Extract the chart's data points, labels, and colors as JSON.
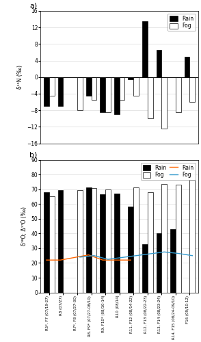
{
  "categories": [
    "R5*, F7 (07/19-27)",
    "R8 (07/27)",
    "R7*, F8 (07/27-30)",
    "R8, F9* (07/27-08/10)",
    "R9, F10* (08/10-14)",
    "R10 (08/14)",
    "R11, F12 (08/14-22)",
    "R12, F13 (08/22-23)",
    "R13, F14 (08/23-24)",
    "R14, F15 (08/24-09/10)",
    "F16 (09/10-12)"
  ],
  "rain_N": [
    -7.0,
    -7.0,
    null,
    -4.5,
    -8.5,
    -9.0,
    -0.5,
    13.5,
    6.5,
    null,
    5.0
  ],
  "fog_N": [
    -4.5,
    null,
    -8.0,
    -5.5,
    -8.5,
    -5.5,
    -4.5,
    -10.0,
    -12.5,
    -8.5,
    -6.0
  ],
  "rain_O": [
    68.0,
    69.5,
    null,
    71.5,
    66.5,
    67.0,
    58.5,
    33.0,
    40.0,
    43.0,
    null
  ],
  "fog_O": [
    65.5,
    null,
    69.5,
    71.0,
    70.0,
    null,
    71.5,
    68.0,
    73.5,
    73.0,
    76.5
  ],
  "rain_delta17": [
    22.0,
    22.0,
    null,
    25.5,
    22.0,
    22.0,
    22.0,
    null,
    null,
    null,
    null
  ],
  "fog_delta17": [
    null,
    null,
    24.0,
    25.0,
    22.5,
    null,
    25.0,
    null,
    27.5,
    26.5,
    25.0
  ],
  "ylim_a": [
    -16,
    16
  ],
  "yticks_a": [
    -16,
    -12,
    -8,
    -4,
    0,
    4,
    8,
    12,
    16
  ],
  "ylim_b": [
    0,
    90
  ],
  "yticks_b": [
    0,
    10,
    20,
    30,
    40,
    50,
    60,
    70,
    80,
    90
  ],
  "ylabel_a": "δ¹⁵N (‰)",
  "ylabel_b": "δ¹⁸O; Δ¹⁷O (‰)",
  "bar_width": 0.38,
  "rain_bar_color": "#000000",
  "fog_bar_color": "#ffffff",
  "fog_bar_edge": "#000000",
  "rain_line_color": "#ff6600",
  "fog_line_color": "#3399cc",
  "background": "#ffffff",
  "label_a": "a)",
  "label_b": "b)",
  "figsize": [
    2.94,
    5.0
  ],
  "dpi": 100
}
